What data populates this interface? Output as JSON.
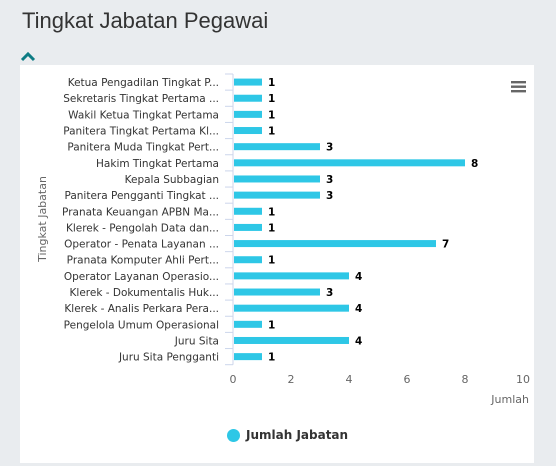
{
  "page": {
    "title": "Tingkat Jabatan Pegawai"
  },
  "icons": {
    "collapse": "chevron-up-icon",
    "menu": "hamburger-menu-icon"
  },
  "colors": {
    "bar": "#2ec7e6",
    "axis": "#ccd6eb",
    "text": "#333333",
    "accent": "#0d7c84"
  },
  "chart_data": {
    "type": "bar",
    "orientation": "horizontal",
    "categories": [
      "Ketua Pengadilan Tingkat P...",
      "Sekretaris Tingkat Pertama ...",
      "Wakil Ketua Tingkat Pertama",
      "Panitera Tingkat Pertama Kl...",
      "Panitera Muda Tingkat Pert...",
      "Hakim Tingkat Pertama",
      "Kepala Subbagian",
      "Panitera Pengganti Tingkat ...",
      "Pranata Keuangan APBN Ma...",
      "Klerek - Pengolah Data dan...",
      "Operator - Penata Layanan ...",
      "Pranata Komputer Ahli Pert...",
      "Operator Layanan Operasio...",
      "Klerek - Dokumentalis Huk...",
      "Klerek - Analis Perkara Pera...",
      "Pengelola Umum Operasional",
      "Juru Sita",
      "Juru Sita Pengganti"
    ],
    "series": [
      {
        "name": "Jumlah Jabatan",
        "values": [
          1,
          1,
          1,
          1,
          3,
          8,
          3,
          3,
          1,
          1,
          7,
          1,
          4,
          3,
          4,
          1,
          4,
          1
        ]
      }
    ],
    "xlabel": "Jumlah",
    "ylabel": "Tingkat Jabatan",
    "xlim": [
      0,
      10
    ],
    "xticks": [
      0,
      2,
      4,
      6,
      8,
      10
    ],
    "data_labels": true,
    "grid": false,
    "legend": "bottom-center"
  }
}
